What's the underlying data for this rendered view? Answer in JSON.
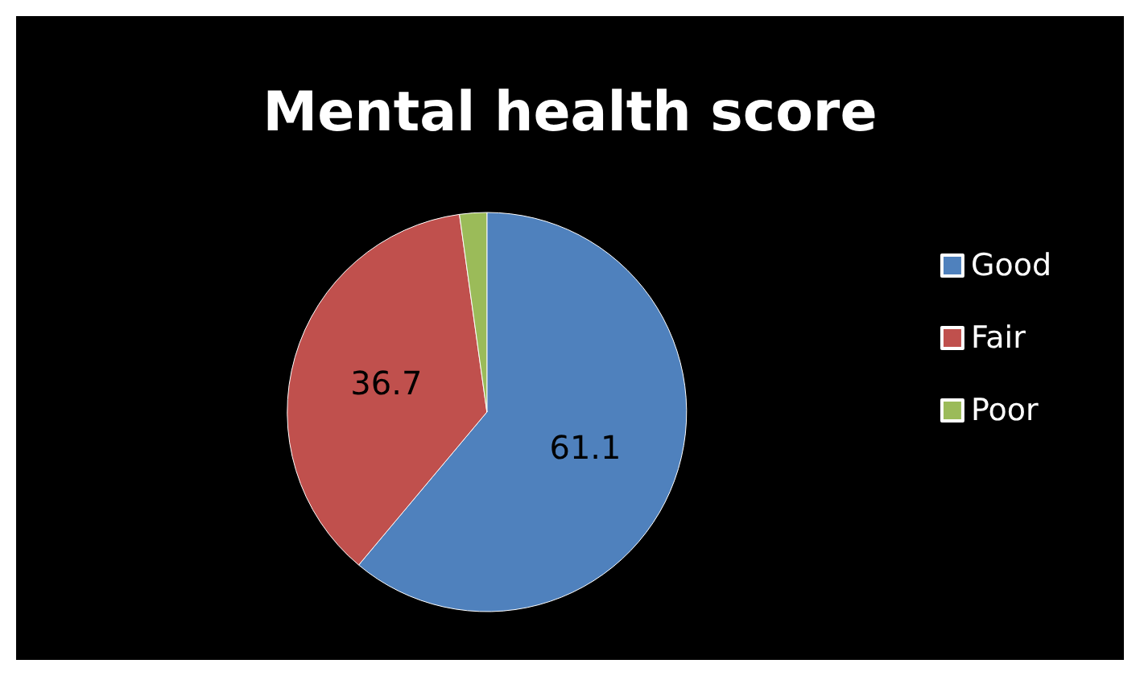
{
  "chart_data": {
    "type": "pie",
    "title": "Mental health score",
    "categories": [
      "Good",
      "Fair",
      "Poor"
    ],
    "values": [
      61.1,
      36.7,
      2.2
    ],
    "colors": [
      "#4f81bd",
      "#c0504d",
      "#9bbb59"
    ],
    "value_labels": [
      "61.1",
      "36.7",
      null
    ],
    "legend": "right"
  }
}
